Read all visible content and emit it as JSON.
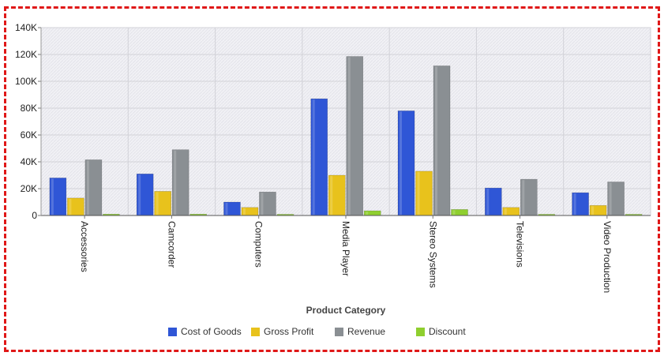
{
  "chart_data": {
    "type": "bar",
    "title": "",
    "xlabel": "Product Category",
    "ylabel": "",
    "categories": [
      "Accessories",
      "Camcorder",
      "Computers",
      "Media Player",
      "Stereo Systems",
      "Televisions",
      "Video Production"
    ],
    "yticks": [
      "0",
      "20K",
      "40K",
      "60K",
      "80K",
      "100K",
      "120K",
      "140K"
    ],
    "ylim": [
      0,
      140000
    ],
    "grid": true,
    "legend_position": "bottom",
    "series": [
      {
        "name": "Cost of Goods",
        "color": "#2f56d6",
        "values": [
          28000,
          31000,
          10000,
          87000,
          78000,
          20500,
          17000
        ]
      },
      {
        "name": "Gross Profit",
        "color": "#e8c21c",
        "values": [
          13000,
          18000,
          6000,
          30000,
          33000,
          6000,
          7500
        ]
      },
      {
        "name": "Revenue",
        "color": "#8a8f93",
        "values": [
          41500,
          49000,
          17500,
          118500,
          111500,
          27000,
          25000
        ]
      },
      {
        "name": "Discount",
        "color": "#8fcf2f",
        "values": [
          1000,
          1000,
          300,
          3500,
          4500,
          400,
          400
        ]
      }
    ]
  }
}
